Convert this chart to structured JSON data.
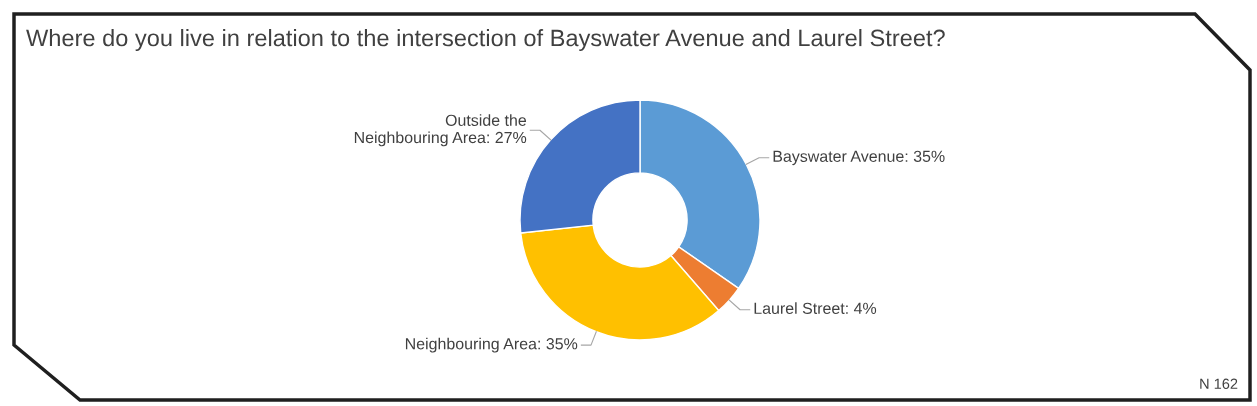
{
  "chart_data": {
    "type": "donut",
    "title": "Where do you live in relation to the intersection of Bayswater Avenue and Laurel Street?",
    "categories": [
      "Bayswater Avenue: 35%",
      "Laurel Street: 4%",
      "Neighbouring Area: 35%",
      "Outside the Neighbouring Area: 27%"
    ],
    "values": [
      35,
      4,
      35,
      27
    ],
    "colors": [
      "#5b9bd5",
      "#ed7d31",
      "#ffc000",
      "#4472c4"
    ],
    "annotations": [
      "N 162"
    ],
    "legend": false
  }
}
